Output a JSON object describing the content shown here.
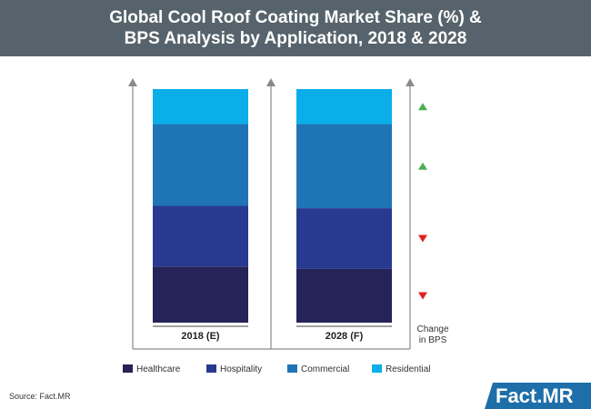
{
  "title_line1": "Global Cool Roof Coating Market Share (%) &",
  "title_line2": "BPS Analysis by Application, 2018 & 2028",
  "source": "Source: Fact.MR",
  "logo_text": "Fact.MR",
  "colors": {
    "title_bg": "#56636c",
    "healthcare": "#262358",
    "hospitality": "#283a8f",
    "commercial": "#1f74b6",
    "residential": "#0aaee9",
    "up": "#4caf50",
    "down": "#e02020",
    "logo_bg": "#1d6ea9"
  },
  "chart_data": {
    "type": "bar",
    "stacked": true,
    "normalized_100": true,
    "categories": [
      "2018 (E)",
      "2028 (F)"
    ],
    "series": [
      {
        "name": "Healthcare",
        "values": [
          24,
          23
        ],
        "color": "#262358",
        "bps_change": "down"
      },
      {
        "name": "Hospitality",
        "values": [
          26,
          26
        ],
        "color": "#283a8f",
        "bps_change": "down"
      },
      {
        "name": "Commercial",
        "values": [
          35,
          36
        ],
        "color": "#1f74b6",
        "bps_change": "up"
      },
      {
        "name": "Residential",
        "values": [
          15,
          15
        ],
        "color": "#0aaee9",
        "bps_change": "up"
      }
    ],
    "bps_label": [
      "Change",
      "in BPS"
    ],
    "legend_position": "bottom",
    "grid": false,
    "ylim": [
      0,
      100
    ]
  }
}
